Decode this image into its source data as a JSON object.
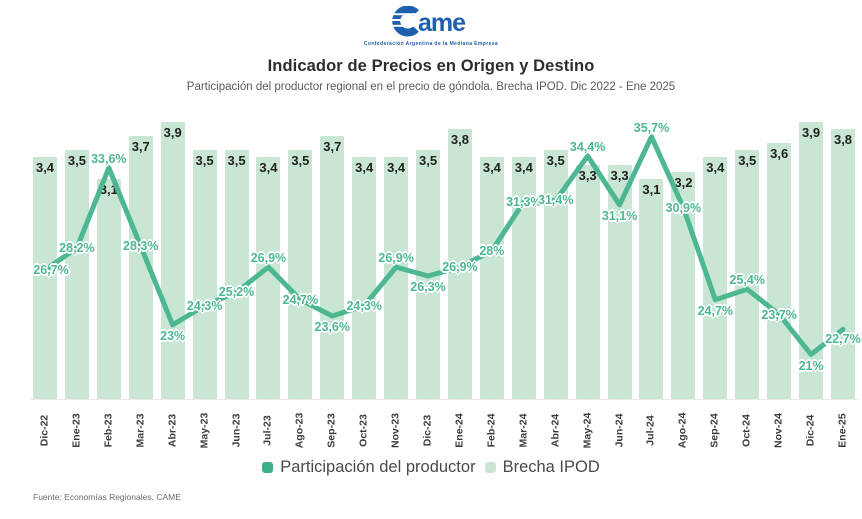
{
  "logo": {
    "brand": "Came",
    "tagline": "Confederación Argentina de la Mediana Empresa",
    "color": "#1e5fae"
  },
  "header": {
    "title": "Indicador de Precios en Origen y Destino",
    "subtitle": "Participación del productor regional en el precio de góndola. Brecha IPOD. Dic 2022 - Ene 2025"
  },
  "chart_data": {
    "type": "bar",
    "title": "Indicador de Precios en Origen y Destino",
    "categories": [
      "Dic-22",
      "Ene-23",
      "Feb-23",
      "Mar-23",
      "Abr-23",
      "May-23",
      "Jun-23",
      "Jul-23",
      "Ago-23",
      "Sep-23",
      "Oct-23",
      "Nov-23",
      "Dic-23",
      "Ene-24",
      "Feb-24",
      "Mar-24",
      "Abr-24",
      "May-24",
      "Jun-24",
      "Jul-24",
      "Ago-24",
      "Sep-24",
      "Oct-24",
      "Nov-24",
      "Dic-24",
      "Ene-25"
    ],
    "series": [
      {
        "name": "Brecha IPOD",
        "type": "bar",
        "color": "#c9e6d5",
        "values": [
          3.4,
          3.5,
          3.1,
          3.7,
          3.9,
          3.5,
          3.5,
          3.4,
          3.5,
          3.7,
          3.4,
          3.4,
          3.5,
          3.8,
          3.4,
          3.4,
          3.5,
          3.3,
          3.3,
          3.1,
          3.2,
          3.4,
          3.5,
          3.6,
          3.9,
          3.8
        ],
        "labels": [
          "3,4",
          "3,5",
          "3,1",
          "3,7",
          "3,9",
          "3,5",
          "3,5",
          "3,4",
          "3,5",
          "3,7",
          "3,4",
          "3,4",
          "3,5",
          "3,8",
          "3,4",
          "3,4",
          "3,5",
          "3,3",
          "3,3",
          "3,1",
          "3,2",
          "3,4",
          "3,5",
          "3,6",
          "3,9",
          "3,8"
        ]
      },
      {
        "name": "Participación del productor",
        "type": "line",
        "unit": "%",
        "color": "#4cb791",
        "values": [
          26.7,
          28.2,
          33.6,
          28.3,
          23,
          24.3,
          25.2,
          26.9,
          24.7,
          23.6,
          24.3,
          26.9,
          26.3,
          26.9,
          28,
          31.3,
          31.4,
          34.4,
          31.1,
          35.7,
          30.9,
          24.7,
          25.4,
          23.7,
          21,
          22.7
        ],
        "labels": [
          "26,7%",
          "28,2%",
          "33,6%",
          "28,3%",
          "23%",
          "24,3%",
          "25,2%",
          "26,9%",
          "24,7%",
          "23,6%",
          "24,3%",
          "26,9%",
          "26,3%",
          "26,9%",
          "28%",
          "31,3%",
          "31,4%",
          "34,4%",
          "31,1%",
          "35,7%",
          "30,9%",
          "24,7%",
          "25,4%",
          "23,7%",
          "21%",
          "22,7%"
        ]
      }
    ],
    "bar_axis_range": [
      0,
      4.15
    ],
    "line_axis_range": [
      18,
      37.5
    ],
    "value_axis_visible": false,
    "grid": false,
    "legend_position": "bottom"
  },
  "legend": {
    "items": [
      {
        "label": "Participación del productor",
        "color": "#3fae87"
      },
      {
        "label": "Brecha IPOD",
        "color": "#c9e6d5"
      }
    ]
  },
  "footer": {
    "source": "Fuente: Economías Regionales, CAME"
  }
}
